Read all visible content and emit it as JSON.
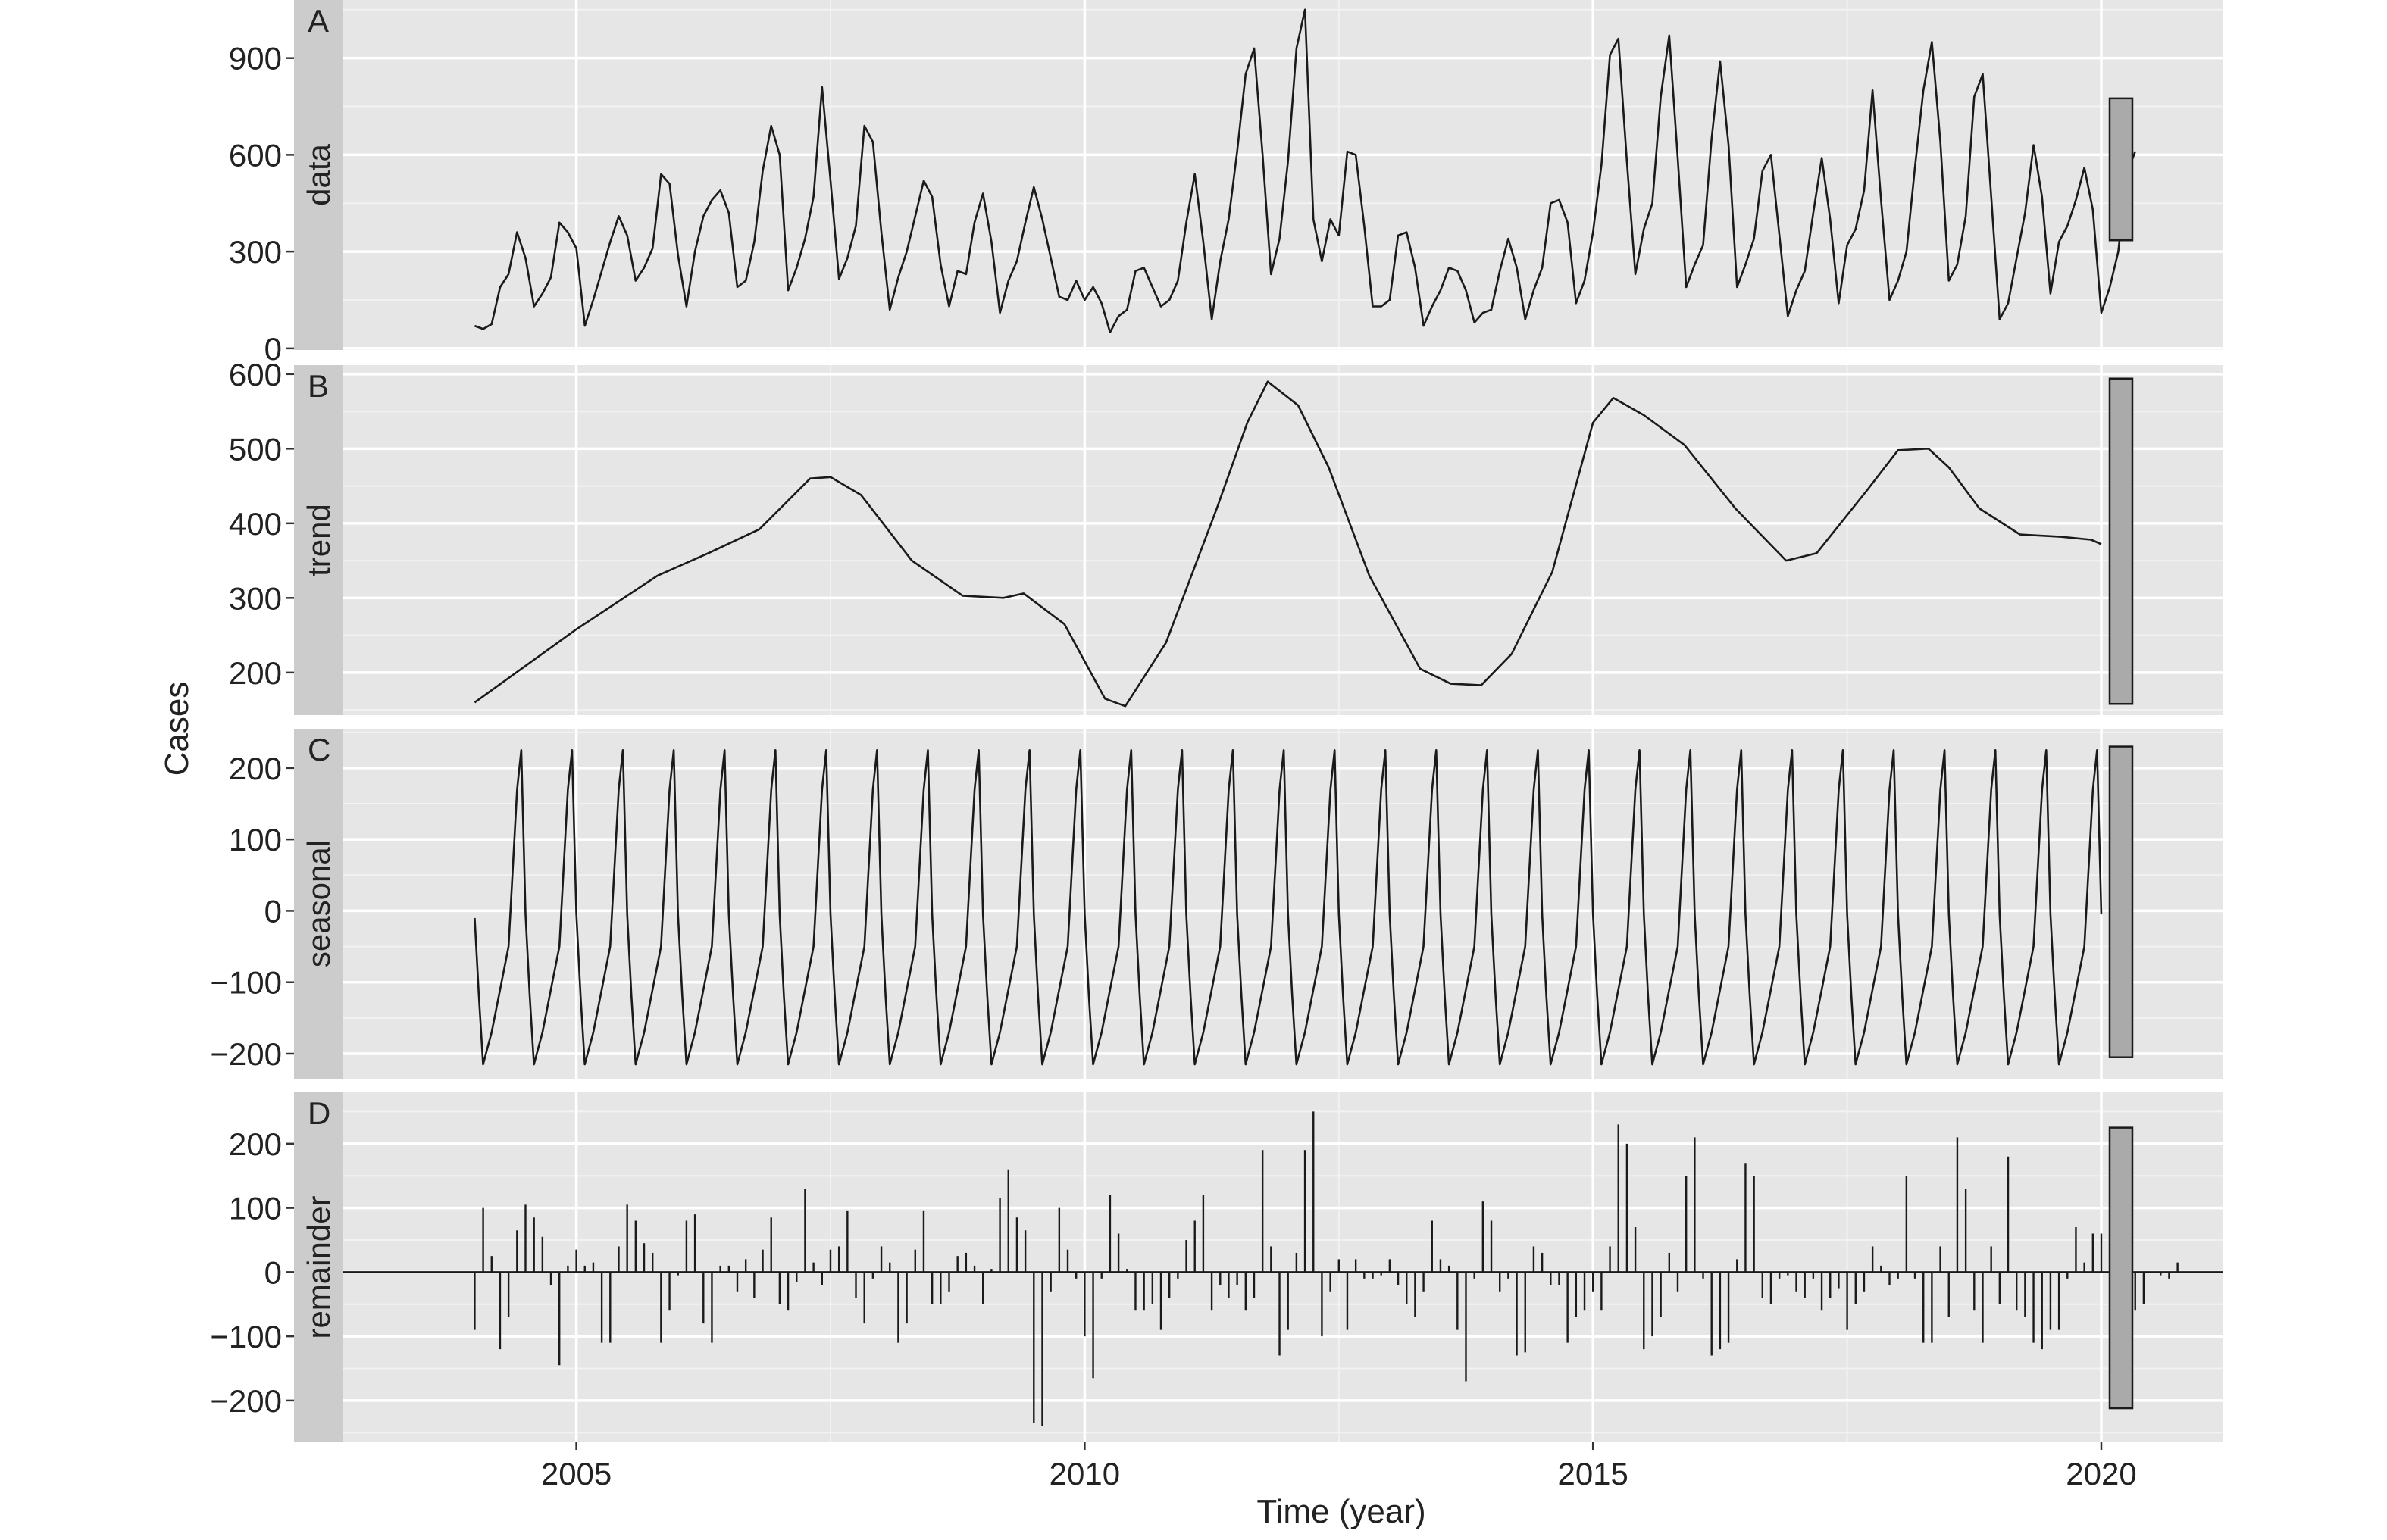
{
  "chart_data": {
    "type": "line",
    "xlabel": "Time (year)",
    "ylabel": "Cases",
    "xlim": [
      2002.7,
      2021.2
    ],
    "x_ticks": [
      2005,
      2010,
      2015,
      2020
    ],
    "x_tick_labels": [
      "2005",
      "2010",
      "2015",
      "2020"
    ],
    "start": 2004.0,
    "step": 0.0833333,
    "panels": [
      {
        "id": "A",
        "strip": "data",
        "kind": "line",
        "ylim": [
          -5,
          1080
        ],
        "y_ticks": [
          0,
          300,
          600,
          900
        ],
        "y_tick_labels": [
          "0",
          "300",
          "600",
          "900"
        ],
        "scale_bar": [
          335,
          775
        ],
        "values": [
          70,
          60,
          75,
          190,
          230,
          360,
          280,
          130,
          170,
          220,
          390,
          360,
          310,
          70,
          150,
          240,
          330,
          410,
          350,
          210,
          250,
          310,
          540,
          510,
          290,
          130,
          300,
          410,
          460,
          490,
          420,
          190,
          210,
          330,
          550,
          690,
          600,
          180,
          250,
          340,
          470,
          810,
          520,
          215,
          280,
          380,
          690,
          640,
          360,
          120,
          220,
          300,
          410,
          520,
          470,
          260,
          130,
          240,
          230,
          390,
          480,
          330,
          110,
          210,
          270,
          390,
          500,
          400,
          280,
          160,
          150,
          210,
          150,
          190,
          140,
          50,
          100,
          120,
          240,
          250,
          190,
          130,
          150,
          210,
          390,
          540,
          330,
          90,
          270,
          400,
          610,
          850,
          930,
          600,
          230,
          340,
          580,
          930,
          1050,
          400,
          270,
          400,
          350,
          610,
          600,
          380,
          130,
          130,
          150,
          350,
          360,
          250,
          70,
          130,
          180,
          250,
          240,
          180,
          80,
          110,
          120,
          240,
          340,
          250,
          90,
          180,
          250,
          450,
          460,
          390,
          140,
          210,
          360,
          570,
          910,
          960,
          580,
          230,
          370,
          450,
          780,
          970,
          590,
          190,
          260,
          320,
          650,
          890,
          630,
          190,
          260,
          340,
          550,
          600,
          350,
          100,
          180,
          240,
          420,
          590,
          400,
          140,
          320,
          370,
          490,
          800,
          460,
          150,
          210,
          300,
          560,
          800,
          950,
          640,
          210,
          260,
          410,
          780,
          850,
          470,
          90,
          140,
          280,
          420,
          630,
          470,
          170,
          330,
          380,
          460,
          560,
          430,
          110,
          190,
          300,
          540,
          610
        ]
      },
      {
        "id": "B",
        "strip": "trend",
        "kind": "line",
        "ylim": [
          143,
          612
        ],
        "y_ticks": [
          200,
          300,
          400,
          500,
          600
        ],
        "y_tick_labels": [
          "200",
          "300",
          "400",
          "500",
          "600"
        ],
        "scale_bar": [
          158,
          594
        ],
        "keypoints": [
          [
            2004.0,
            160
          ],
          [
            2005.0,
            258
          ],
          [
            2005.8,
            330
          ],
          [
            2006.3,
            360
          ],
          [
            2006.8,
            392
          ],
          [
            2007.3,
            460
          ],
          [
            2007.5,
            462
          ],
          [
            2007.8,
            438
          ],
          [
            2008.3,
            350
          ],
          [
            2008.8,
            303
          ],
          [
            2009.2,
            300
          ],
          [
            2009.4,
            306
          ],
          [
            2009.8,
            265
          ],
          [
            2010.2,
            165
          ],
          [
            2010.4,
            155
          ],
          [
            2010.8,
            240
          ],
          [
            2011.3,
            420
          ],
          [
            2011.6,
            535
          ],
          [
            2011.8,
            590
          ],
          [
            2012.1,
            558
          ],
          [
            2012.4,
            475
          ],
          [
            2012.8,
            330
          ],
          [
            2013.3,
            205
          ],
          [
            2013.6,
            185
          ],
          [
            2013.9,
            183
          ],
          [
            2014.2,
            225
          ],
          [
            2014.6,
            335
          ],
          [
            2015.0,
            535
          ],
          [
            2015.2,
            568
          ],
          [
            2015.5,
            545
          ],
          [
            2015.9,
            505
          ],
          [
            2016.4,
            420
          ],
          [
            2016.9,
            350
          ],
          [
            2017.2,
            360
          ],
          [
            2017.7,
            445
          ],
          [
            2018.0,
            498
          ],
          [
            2018.3,
            500
          ],
          [
            2018.5,
            475
          ],
          [
            2018.8,
            420
          ],
          [
            2019.2,
            385
          ],
          [
            2019.6,
            382
          ],
          [
            2019.9,
            378
          ],
          [
            2020.0,
            372
          ]
        ]
      },
      {
        "id": "C",
        "strip": "seasonal",
        "kind": "line",
        "ylim": [
          -235,
          255
        ],
        "y_ticks": [
          200,
          100,
          0,
          -100,
          -200
        ],
        "y_tick_labels": [
          "200",
          "100",
          "0",
          "−100",
          "−200"
        ],
        "scale_bar": [
          -205,
          230
        ],
        "cycle_offsets": [
          0.0,
          0.042,
          0.083,
          0.167,
          0.25,
          0.333,
          0.417,
          0.458,
          0.5
        ],
        "cycle_values": [
          -10,
          -120,
          -215,
          -170,
          -110,
          -50,
          170,
          225,
          -5
        ],
        "cycles": 32
      },
      {
        "id": "D",
        "strip": "remainder",
        "kind": "bars",
        "ylim": [
          -265,
          280
        ],
        "y_ticks": [
          200,
          100,
          0,
          -100,
          -200
        ],
        "y_tick_labels": [
          "200",
          "100",
          "0",
          "−100",
          "−200"
        ],
        "scale_bar": [
          -212,
          225
        ],
        "values": [
          -90,
          100,
          25,
          -120,
          -70,
          65,
          105,
          85,
          55,
          -20,
          -145,
          10,
          35,
          10,
          15,
          -110,
          -110,
          40,
          105,
          80,
          45,
          30,
          -110,
          -60,
          -5,
          80,
          90,
          -80,
          -110,
          10,
          10,
          -30,
          20,
          -40,
          35,
          85,
          -50,
          -60,
          -15,
          130,
          15,
          -20,
          35,
          40,
          95,
          -40,
          -80,
          -10,
          40,
          15,
          -110,
          -80,
          35,
          95,
          -50,
          -50,
          -30,
          25,
          30,
          10,
          -50,
          5,
          115,
          160,
          85,
          65,
          -235,
          -240,
          -30,
          100,
          35,
          -10,
          -100,
          -165,
          -10,
          120,
          60,
          5,
          -60,
          -60,
          -50,
          -90,
          -40,
          -10,
          50,
          80,
          120,
          -60,
          -20,
          -40,
          -20,
          -60,
          -40,
          190,
          40,
          -130,
          -90,
          30,
          190,
          250,
          -100,
          -30,
          20,
          -90,
          20,
          -10,
          -10,
          -5,
          20,
          -20,
          -50,
          -70,
          -30,
          80,
          20,
          10,
          -90,
          -170,
          -10,
          110,
          80,
          -30,
          -10,
          -130,
          -125,
          40,
          30,
          -20,
          -20,
          -110,
          -70,
          -60,
          -30,
          -60,
          40,
          230,
          200,
          70,
          -120,
          -100,
          -70,
          30,
          -30,
          150,
          210,
          -10,
          -130,
          -120,
          -110,
          20,
          170,
          150,
          -40,
          -50,
          -10,
          -5,
          -30,
          -40,
          -10,
          -60,
          -40,
          -25,
          -90,
          -50,
          -30,
          40,
          10,
          -20,
          -10,
          150,
          -10,
          -110,
          -110,
          40,
          -70,
          210,
          130,
          -60,
          -110,
          40,
          -50,
          180,
          -60,
          -70,
          -110,
          -120,
          -90,
          -90,
          -10,
          70,
          15,
          60,
          60,
          -10,
          -10,
          -40,
          -60,
          -50,
          0,
          -5,
          -10,
          15
        ]
      }
    ]
  }
}
